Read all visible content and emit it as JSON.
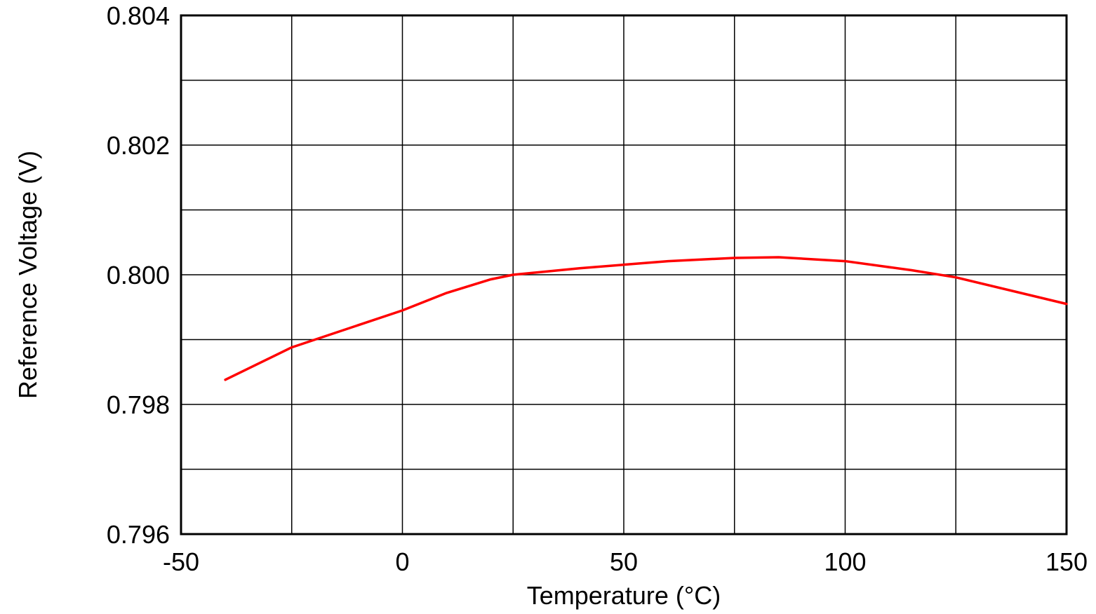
{
  "chart_data": {
    "type": "line",
    "title": "",
    "xlabel": "Temperature (°C)",
    "ylabel": "Reference Voltage (V)",
    "xlim": [
      -50,
      150
    ],
    "ylim": [
      0.796,
      0.804
    ],
    "grid": {
      "visible": true,
      "x_step": 25,
      "y_step": 0.001,
      "color": "#000000"
    },
    "x_ticks": [
      {
        "value": -50,
        "label": "-50"
      },
      {
        "value": 0,
        "label": "0"
      },
      {
        "value": 50,
        "label": "50"
      },
      {
        "value": 100,
        "label": "100"
      },
      {
        "value": 150,
        "label": "150"
      }
    ],
    "y_ticks": [
      {
        "value": 0.796,
        "label": "0.796"
      },
      {
        "value": 0.798,
        "label": "0.798"
      },
      {
        "value": 0.8,
        "label": "0.800"
      },
      {
        "value": 0.802,
        "label": "0.802"
      },
      {
        "value": 0.804,
        "label": "0.804"
      }
    ],
    "series": [
      {
        "name": "Reference Voltage",
        "color": "#ff0000",
        "points": [
          {
            "x": -40,
            "y": 0.79838
          },
          {
            "x": -25,
            "y": 0.79888
          },
          {
            "x": 0,
            "y": 0.79945
          },
          {
            "x": 10,
            "y": 0.79972
          },
          {
            "x": 20,
            "y": 0.79993
          },
          {
            "x": 25,
            "y": 0.8
          },
          {
            "x": 40,
            "y": 0.8001
          },
          {
            "x": 60,
            "y": 0.80021
          },
          {
            "x": 75,
            "y": 0.80026
          },
          {
            "x": 85,
            "y": 0.80027
          },
          {
            "x": 100,
            "y": 0.80021
          },
          {
            "x": 115,
            "y": 0.80007
          },
          {
            "x": 125,
            "y": 0.79996
          },
          {
            "x": 150,
            "y": 0.79955
          }
        ]
      }
    ],
    "legend": {
      "visible": false
    },
    "plot_border_color": "#000000",
    "background_color": "#ffffff"
  }
}
